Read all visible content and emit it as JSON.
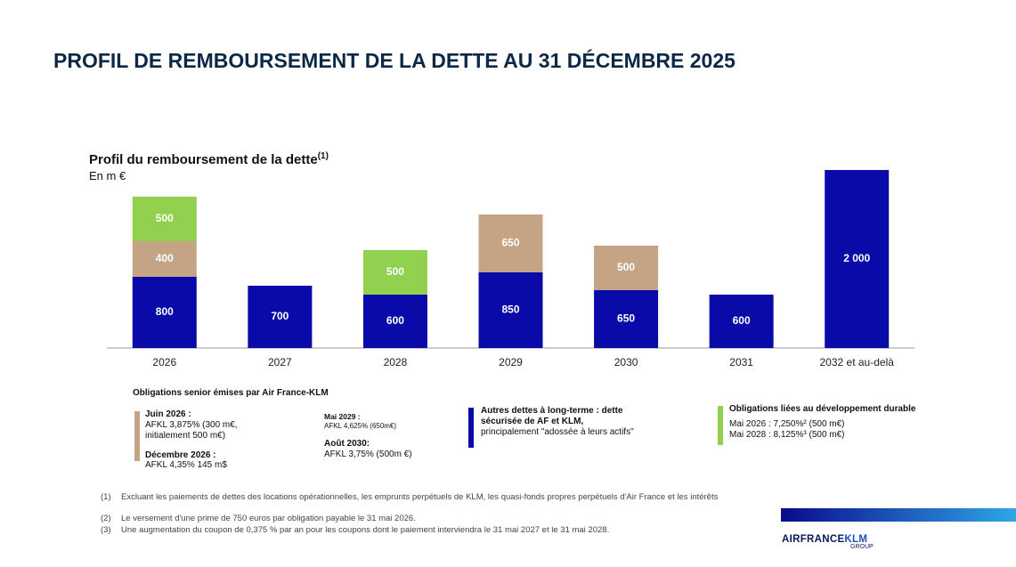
{
  "header": {
    "title": "PROFIL DE REMBOURSEMENT DE LA DETTE AU 31 DÉCEMBRE 2025"
  },
  "chart_data": {
    "type": "stacked_bar",
    "title": "Profil du remboursement de la dette",
    "title_note": "(1)",
    "subtitle": "En m €",
    "categories": [
      "2026",
      "2027",
      "2028",
      "2029",
      "2030",
      "2031",
      "2032 et au-delà"
    ],
    "series": [
      {
        "name": "Autres dettes à long-terme : dette sécurisée de AF et KLM,",
        "color": "#0a0aa8",
        "values": [
          800,
          700,
          600,
          850,
          650,
          600,
          2000
        ],
        "value_labels": [
          "800",
          "700",
          "600",
          "850",
          "650",
          "600",
          "2 000"
        ]
      },
      {
        "name": "Obligations senior émises par Air France-KLM",
        "color": "#c4a484",
        "values": [
          400,
          null,
          null,
          650,
          500,
          null,
          null
        ]
      },
      {
        "name": "Obligations liées au développement durable",
        "color": "#92d050",
        "values": [
          500,
          null,
          500,
          null,
          null,
          null,
          null
        ]
      }
    ]
  },
  "legend_details": {
    "senior_bonds": [
      {
        "label": "Juin 2026 :",
        "text": "AFKL 3,875% (300 m€, initialement 500 m€)"
      },
      {
        "label": "Décembre 2026 :",
        "text": "AFKL 4,35% 145 m$"
      },
      {
        "label": "Mai 2029 :",
        "text": "AFKL 4,625% (650m€)"
      },
      {
        "label": "Août 2030:",
        "text": "AFKL 3,75% (500m €)"
      }
    ],
    "secured_debt": "principalement \"adossée à leurs actifs\"",
    "sustainable_bonds": [
      "Mai 2026 : 7,250%² (500 m€)",
      "Mai 2028 : 8,125%³ (500 m€)"
    ]
  },
  "footnotes": [
    {
      "marker": "(1)",
      "text": "Excluant les paiements de dettes des locations opérationnelles, les emprunts perpétuels de KLM, les quasi-fonds propres perpétuels d'Air France et les intérêts"
    },
    {
      "marker": "(2)",
      "text": "Le versement d'une prime de 750 euros par obligation payable le 31 mai 2026."
    },
    {
      "marker": "(3)",
      "text": "Une augmentation du coupon de 0,375 % par an pour les coupons dont le paiement interviendra le 31 mai 2027 et le 31 mai 2028."
    }
  ],
  "logo": {
    "brand": "AIRFRANCE",
    "brand2": "KLM",
    "group": "GROUP"
  }
}
